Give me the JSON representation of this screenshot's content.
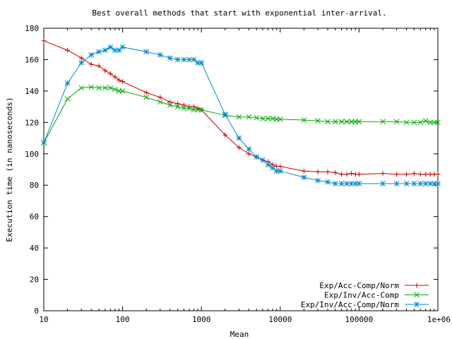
{
  "chart_data": {
    "type": "line",
    "title": "Best overall methods that start with exponential inter-arrival.",
    "xlabel": "Mean",
    "ylabel": "Execution time (in nanoseconds)",
    "xscale": "log",
    "xlim": [
      10,
      1000000
    ],
    "ylim": [
      0,
      180
    ],
    "grid": false,
    "legend_position": "bottom-right",
    "x_ticks": [
      {
        "value": 10,
        "label": "10"
      },
      {
        "value": 100,
        "label": "100"
      },
      {
        "value": 1000,
        "label": "1000"
      },
      {
        "value": 10000,
        "label": "10000"
      },
      {
        "value": 100000,
        "label": "100000"
      },
      {
        "value": 1000000,
        "label": "1e+06"
      }
    ],
    "y_ticks": [
      {
        "value": 0,
        "label": "0"
      },
      {
        "value": 20,
        "label": "20"
      },
      {
        "value": 40,
        "label": "40"
      },
      {
        "value": 60,
        "label": "60"
      },
      {
        "value": 80,
        "label": "80"
      },
      {
        "value": 100,
        "label": "100"
      },
      {
        "value": 120,
        "label": "120"
      },
      {
        "value": 140,
        "label": "140"
      },
      {
        "value": 160,
        "label": "160"
      },
      {
        "value": 180,
        "label": "180"
      }
    ],
    "series": [
      {
        "name": "Exp/Acc-Comp/Norm",
        "color": "#cc0000",
        "marker": "plus",
        "x": [
          10,
          20,
          30,
          40,
          50,
          60,
          70,
          80,
          90,
          100,
          200,
          300,
          400,
          500,
          600,
          700,
          800,
          900,
          1000,
          2000,
          3000,
          4000,
          5000,
          6000,
          7000,
          8000,
          9000,
          10000,
          20000,
          30000,
          40000,
          50000,
          60000,
          70000,
          80000,
          90000,
          100000,
          200000,
          300000,
          400000,
          500000,
          600000,
          700000,
          800000,
          900000,
          1000000
        ],
        "y": [
          172,
          166,
          161,
          157,
          156,
          153,
          151,
          149,
          147,
          146,
          139,
          136,
          133,
          132,
          131,
          130,
          130,
          129,
          128,
          112,
          104,
          100,
          98,
          96,
          95,
          93,
          92,
          92,
          89,
          88.5,
          88.5,
          88,
          87,
          87,
          87.5,
          87,
          87,
          87.5,
          87,
          87,
          87.5,
          87,
          87,
          87,
          87,
          87
        ]
      },
      {
        "name": "Exp/Inv/Acc-Comp",
        "color": "#00aa00",
        "marker": "cross",
        "x": [
          10,
          20,
          30,
          40,
          50,
          60,
          70,
          80,
          90,
          100,
          200,
          300,
          400,
          500,
          600,
          700,
          800,
          900,
          1000,
          2000,
          3000,
          4000,
          5000,
          6000,
          7000,
          8000,
          9000,
          10000,
          20000,
          30000,
          40000,
          50000,
          60000,
          70000,
          80000,
          90000,
          100000,
          200000,
          300000,
          400000,
          500000,
          600000,
          700000,
          800000,
          900000,
          1000000
        ],
        "y": [
          107,
          135,
          142,
          142.5,
          142,
          142,
          142,
          141,
          140,
          140,
          136,
          133,
          131,
          130,
          129,
          129,
          128,
          128,
          128,
          124.5,
          123.5,
          123.5,
          123,
          122.5,
          122.5,
          122.5,
          122,
          122,
          121.5,
          121,
          120.5,
          120.5,
          120.5,
          120.5,
          120.5,
          120.5,
          120.5,
          120.5,
          120.5,
          120,
          120,
          120,
          121,
          120,
          120,
          120
        ]
      },
      {
        "name": "Exp/Inv/Acc-Comp/Norm",
        "color": "#0088cc",
        "marker": "star",
        "x": [
          10,
          20,
          30,
          40,
          50,
          60,
          70,
          80,
          90,
          100,
          200,
          300,
          400,
          500,
          600,
          700,
          800,
          900,
          1000,
          2000,
          3000,
          4000,
          5000,
          6000,
          7000,
          8000,
          9000,
          10000,
          20000,
          30000,
          40000,
          50000,
          60000,
          70000,
          80000,
          90000,
          100000,
          200000,
          300000,
          400000,
          500000,
          600000,
          700000,
          800000,
          900000,
          1000000
        ],
        "y": [
          107,
          145,
          158,
          163,
          165,
          166,
          168,
          166,
          166,
          168,
          165,
          163,
          161,
          160,
          160,
          160,
          160,
          158,
          158,
          125,
          110,
          103,
          98,
          96,
          93,
          91,
          89,
          89,
          85,
          83,
          82,
          81,
          81,
          81,
          81,
          81,
          81,
          81,
          81,
          81,
          81,
          81,
          81,
          81,
          81,
          81
        ]
      }
    ]
  }
}
